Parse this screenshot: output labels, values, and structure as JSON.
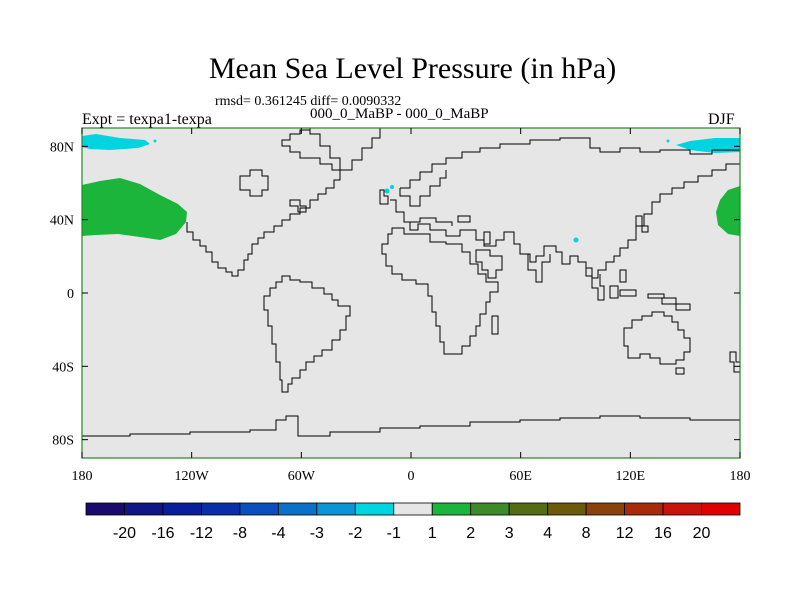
{
  "map": {
    "title": "Mean Sea Level Pressure (in hPa)",
    "stats": "rmsd= 0.361245 diff= 0.0090332",
    "experiment_line": "000_0_MaBP - 000_0_MaBP",
    "left_label": "Expt = texpa1-texpa",
    "right_label": "DJF",
    "projection": "cylindrical equidistant",
    "extent": {
      "lon": [
        -180,
        180
      ],
      "lat": [
        -90,
        90
      ]
    },
    "lon_ticks": [
      {
        "value": -180,
        "label": "180"
      },
      {
        "value": -120,
        "label": "120W"
      },
      {
        "value": -60,
        "label": "60W"
      },
      {
        "value": 0,
        "label": "0"
      },
      {
        "value": 60,
        "label": "60E"
      },
      {
        "value": 120,
        "label": "120E"
      },
      {
        "value": 180,
        "label": "180"
      }
    ],
    "lat_ticks": [
      {
        "value": 80,
        "label": "80N"
      },
      {
        "value": 40,
        "label": "40N"
      },
      {
        "value": 0,
        "label": "0"
      },
      {
        "value": -40,
        "label": "40S"
      },
      {
        "value": -80,
        "label": "80S"
      }
    ],
    "background_color": "#e6e6e6",
    "frame_color": "#1e8a1e",
    "coastline_color": "#000000",
    "anomaly_regions": [
      {
        "name": "north-pacific-positive",
        "level": "1 to 2",
        "color": "#1cb53c"
      },
      {
        "name": "arctic-west-negative",
        "level": "-2 to -1",
        "color": "#00d4e0"
      },
      {
        "name": "arctic-east-negative",
        "level": "-2 to -1",
        "color": "#00d4e0"
      },
      {
        "name": "north-atlantic-negative",
        "level": "-2 to -1",
        "color": "#00d4e0"
      },
      {
        "name": "tibet-negative",
        "level": "-2 to -1",
        "color": "#00d4e0"
      }
    ]
  },
  "colorbar": {
    "levels": [
      "-20",
      "-16",
      "-12",
      "-8",
      "-4",
      "-3",
      "-2",
      "-1",
      "1",
      "2",
      "3",
      "4",
      "8",
      "12",
      "16",
      "20"
    ],
    "colors": [
      "#1b0a6e",
      "#121585",
      "#0a1e9c",
      "#0a2ea8",
      "#0a4fbe",
      "#0a70c8",
      "#0a96d4",
      "#00d4e0",
      "#e6e6e6",
      "#1cb53c",
      "#3c8a28",
      "#556b14",
      "#6b5a0a",
      "#8a420a",
      "#a82a0a",
      "#c8140a",
      "#e00000"
    ]
  }
}
